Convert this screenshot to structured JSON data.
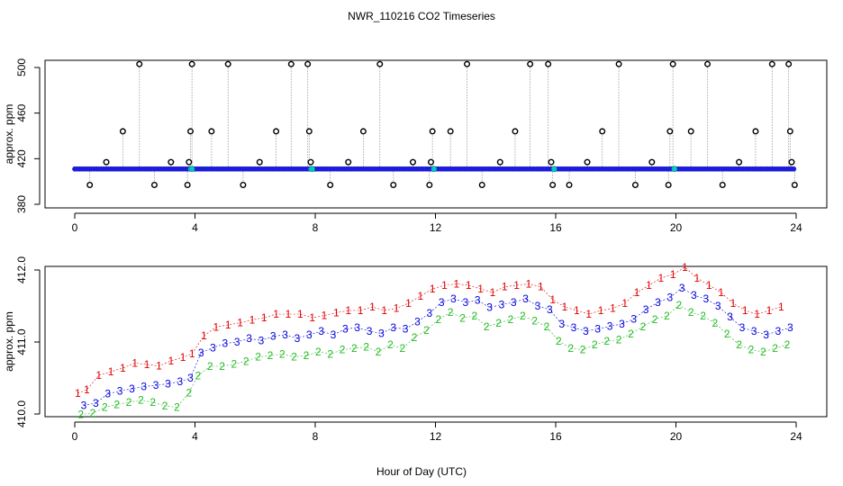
{
  "figure": {
    "title": "NWR_110216  CO2 Timeseries",
    "xlabel": "Hour of Day (UTC)"
  },
  "colors": {
    "series1": "#e00000",
    "series2": "#22bb22",
    "series3": "#0000dd",
    "top_line": "#999999",
    "top_marker": "#000000",
    "top_fill": "#1a1aff",
    "top_cyan": "#00cccc"
  },
  "chart_data": [
    {
      "type": "scatter",
      "panel": "top",
      "ylabel": "approx. ppm",
      "xlim": [
        0,
        24
      ],
      "ylim": [
        380,
        500
      ],
      "xticks": [
        0,
        4,
        8,
        12,
        16,
        20,
        24
      ],
      "yticks": [
        380,
        420,
        460,
        500
      ],
      "baseline": 411,
      "spikes": {
        "x": [
          0.5,
          1.05,
          1.6,
          2.15,
          2.65,
          3.2,
          3.75,
          3.8,
          3.85,
          3.9,
          4.55,
          5.1,
          5.6,
          6.15,
          6.7,
          7.2,
          7.75,
          7.8,
          7.85,
          8.5,
          9.1,
          9.6,
          10.15,
          10.6,
          11.25,
          11.8,
          11.85,
          11.9,
          12.5,
          13.05,
          13.55,
          14.15,
          14.65,
          15.15,
          15.75,
          15.85,
          15.9,
          16.45,
          17.05,
          17.55,
          18.1,
          18.65,
          19.2,
          19.75,
          19.8,
          19.9,
          20.5,
          21.05,
          21.55,
          22.1,
          22.65,
          23.2,
          23.75,
          23.8,
          23.85,
          23.95
        ],
        "y": [
          397,
          417,
          444,
          503,
          397,
          417,
          397,
          417,
          444,
          503,
          444,
          503,
          397,
          417,
          444,
          503,
          503,
          444,
          417,
          397,
          417,
          444,
          503,
          397,
          417,
          397,
          417,
          444,
          444,
          503,
          397,
          417,
          444,
          503,
          503,
          417,
          397,
          397,
          417,
          444,
          503,
          397,
          417,
          397,
          444,
          503,
          444,
          503,
          397,
          417,
          444,
          503,
          503,
          444,
          417,
          397
        ]
      },
      "calibration_gaps": [
        3.9,
        7.9,
        11.95,
        15.95,
        19.95
      ]
    },
    {
      "type": "scatter",
      "panel": "bottom",
      "ylabel": "approx. ppm",
      "xlim": [
        0,
        24
      ],
      "ylim": [
        410.0,
        412.0
      ],
      "xticks": [
        0,
        4,
        8,
        12,
        16,
        20,
        24
      ],
      "yticks": [
        410.0,
        411.0,
        412.0
      ],
      "ytick_labels": [
        "410.0",
        "411.0",
        "412.0"
      ],
      "series": [
        {
          "name": "1",
          "x": [
            0.1,
            0.4,
            0.8,
            1.2,
            1.6,
            2.0,
            2.4,
            2.8,
            3.2,
            3.6,
            3.9,
            4.3,
            4.7,
            5.1,
            5.5,
            5.9,
            6.3,
            6.7,
            7.1,
            7.5,
            7.9,
            8.3,
            8.7,
            9.1,
            9.5,
            9.9,
            10.3,
            10.7,
            11.1,
            11.5,
            11.9,
            12.3,
            12.7,
            13.1,
            13.5,
            13.9,
            14.3,
            14.7,
            15.1,
            15.5,
            15.9,
            16.3,
            16.7,
            17.1,
            17.5,
            17.9,
            18.3,
            18.7,
            19.1,
            19.5,
            19.9,
            20.3,
            20.7,
            21.1,
            21.5,
            21.9,
            22.3,
            22.7,
            23.1,
            23.5
          ],
          "y": [
            410.2,
            410.25,
            410.45,
            410.5,
            410.55,
            410.62,
            410.6,
            410.58,
            410.65,
            410.7,
            410.75,
            411.0,
            411.12,
            411.15,
            411.18,
            411.22,
            411.25,
            411.3,
            411.3,
            411.3,
            411.25,
            411.28,
            411.32,
            411.35,
            411.35,
            411.4,
            411.35,
            411.38,
            411.45,
            411.55,
            411.65,
            411.7,
            411.72,
            411.7,
            411.65,
            411.6,
            411.68,
            411.7,
            411.72,
            411.68,
            411.5,
            411.4,
            411.35,
            411.3,
            411.35,
            411.38,
            411.45,
            411.6,
            411.7,
            411.8,
            411.85,
            411.95,
            411.8,
            411.7,
            411.6,
            411.45,
            411.35,
            411.3,
            411.35,
            411.4
          ]
        },
        {
          "name": "2",
          "x": [
            0.2,
            0.6,
            1.0,
            1.4,
            1.8,
            2.2,
            2.6,
            3.0,
            3.4,
            3.8,
            4.1,
            4.5,
            4.9,
            5.3,
            5.7,
            6.1,
            6.5,
            6.9,
            7.3,
            7.7,
            8.1,
            8.5,
            8.9,
            9.3,
            9.7,
            10.1,
            10.5,
            10.9,
            11.3,
            11.7,
            12.1,
            12.5,
            12.9,
            13.3,
            13.7,
            14.1,
            14.5,
            14.9,
            15.3,
            15.7,
            16.1,
            16.5,
            16.9,
            17.3,
            17.7,
            18.1,
            18.5,
            18.9,
            19.3,
            19.7,
            20.1,
            20.5,
            20.9,
            21.3,
            21.7,
            22.1,
            22.5,
            22.9,
            23.3,
            23.7
          ],
          "y": [
            410.08,
            410.1,
            410.18,
            410.22,
            410.25,
            410.28,
            410.25,
            410.2,
            410.18,
            410.38,
            410.62,
            410.75,
            410.75,
            410.78,
            410.82,
            410.88,
            410.9,
            410.92,
            410.88,
            410.9,
            410.95,
            410.92,
            410.98,
            411.0,
            411.02,
            410.95,
            411.05,
            411.0,
            411.15,
            411.25,
            411.4,
            411.5,
            411.42,
            411.45,
            411.3,
            411.35,
            411.4,
            411.45,
            411.38,
            411.3,
            411.1,
            411.0,
            410.98,
            411.05,
            411.1,
            411.12,
            411.2,
            411.3,
            411.4,
            411.45,
            411.6,
            411.5,
            411.45,
            411.35,
            411.2,
            411.05,
            410.98,
            410.95,
            411.0,
            411.05
          ]
        },
        {
          "name": "3",
          "x": [
            0.3,
            0.7,
            1.1,
            1.5,
            1.9,
            2.3,
            2.7,
            3.1,
            3.5,
            3.85,
            4.2,
            4.6,
            5.0,
            5.4,
            5.8,
            6.2,
            6.6,
            7.0,
            7.4,
            7.8,
            8.2,
            8.6,
            9.0,
            9.4,
            9.8,
            10.2,
            10.6,
            11.0,
            11.4,
            11.8,
            12.2,
            12.6,
            13.0,
            13.4,
            13.8,
            14.2,
            14.6,
            15.0,
            15.4,
            15.8,
            16.2,
            16.6,
            17.0,
            17.4,
            17.8,
            18.2,
            18.6,
            19.0,
            19.4,
            19.8,
            20.2,
            20.6,
            21.0,
            21.4,
            21.8,
            22.2,
            22.6,
            23.0,
            23.4,
            23.8
          ],
          "y": [
            410.12,
            410.15,
            410.28,
            410.32,
            410.35,
            410.38,
            410.4,
            410.42,
            410.45,
            410.5,
            410.85,
            410.92,
            410.98,
            411.0,
            411.05,
            411.02,
            411.08,
            411.1,
            411.05,
            411.1,
            411.15,
            411.1,
            411.18,
            411.2,
            411.15,
            411.12,
            411.2,
            411.18,
            411.28,
            411.4,
            411.55,
            411.6,
            411.55,
            411.58,
            411.48,
            411.52,
            411.55,
            411.6,
            411.5,
            411.45,
            411.25,
            411.2,
            411.15,
            411.18,
            411.22,
            411.25,
            411.32,
            411.45,
            411.55,
            411.62,
            411.75,
            411.65,
            411.6,
            411.5,
            411.35,
            411.2,
            411.15,
            411.1,
            411.15,
            411.2
          ]
        }
      ]
    }
  ]
}
